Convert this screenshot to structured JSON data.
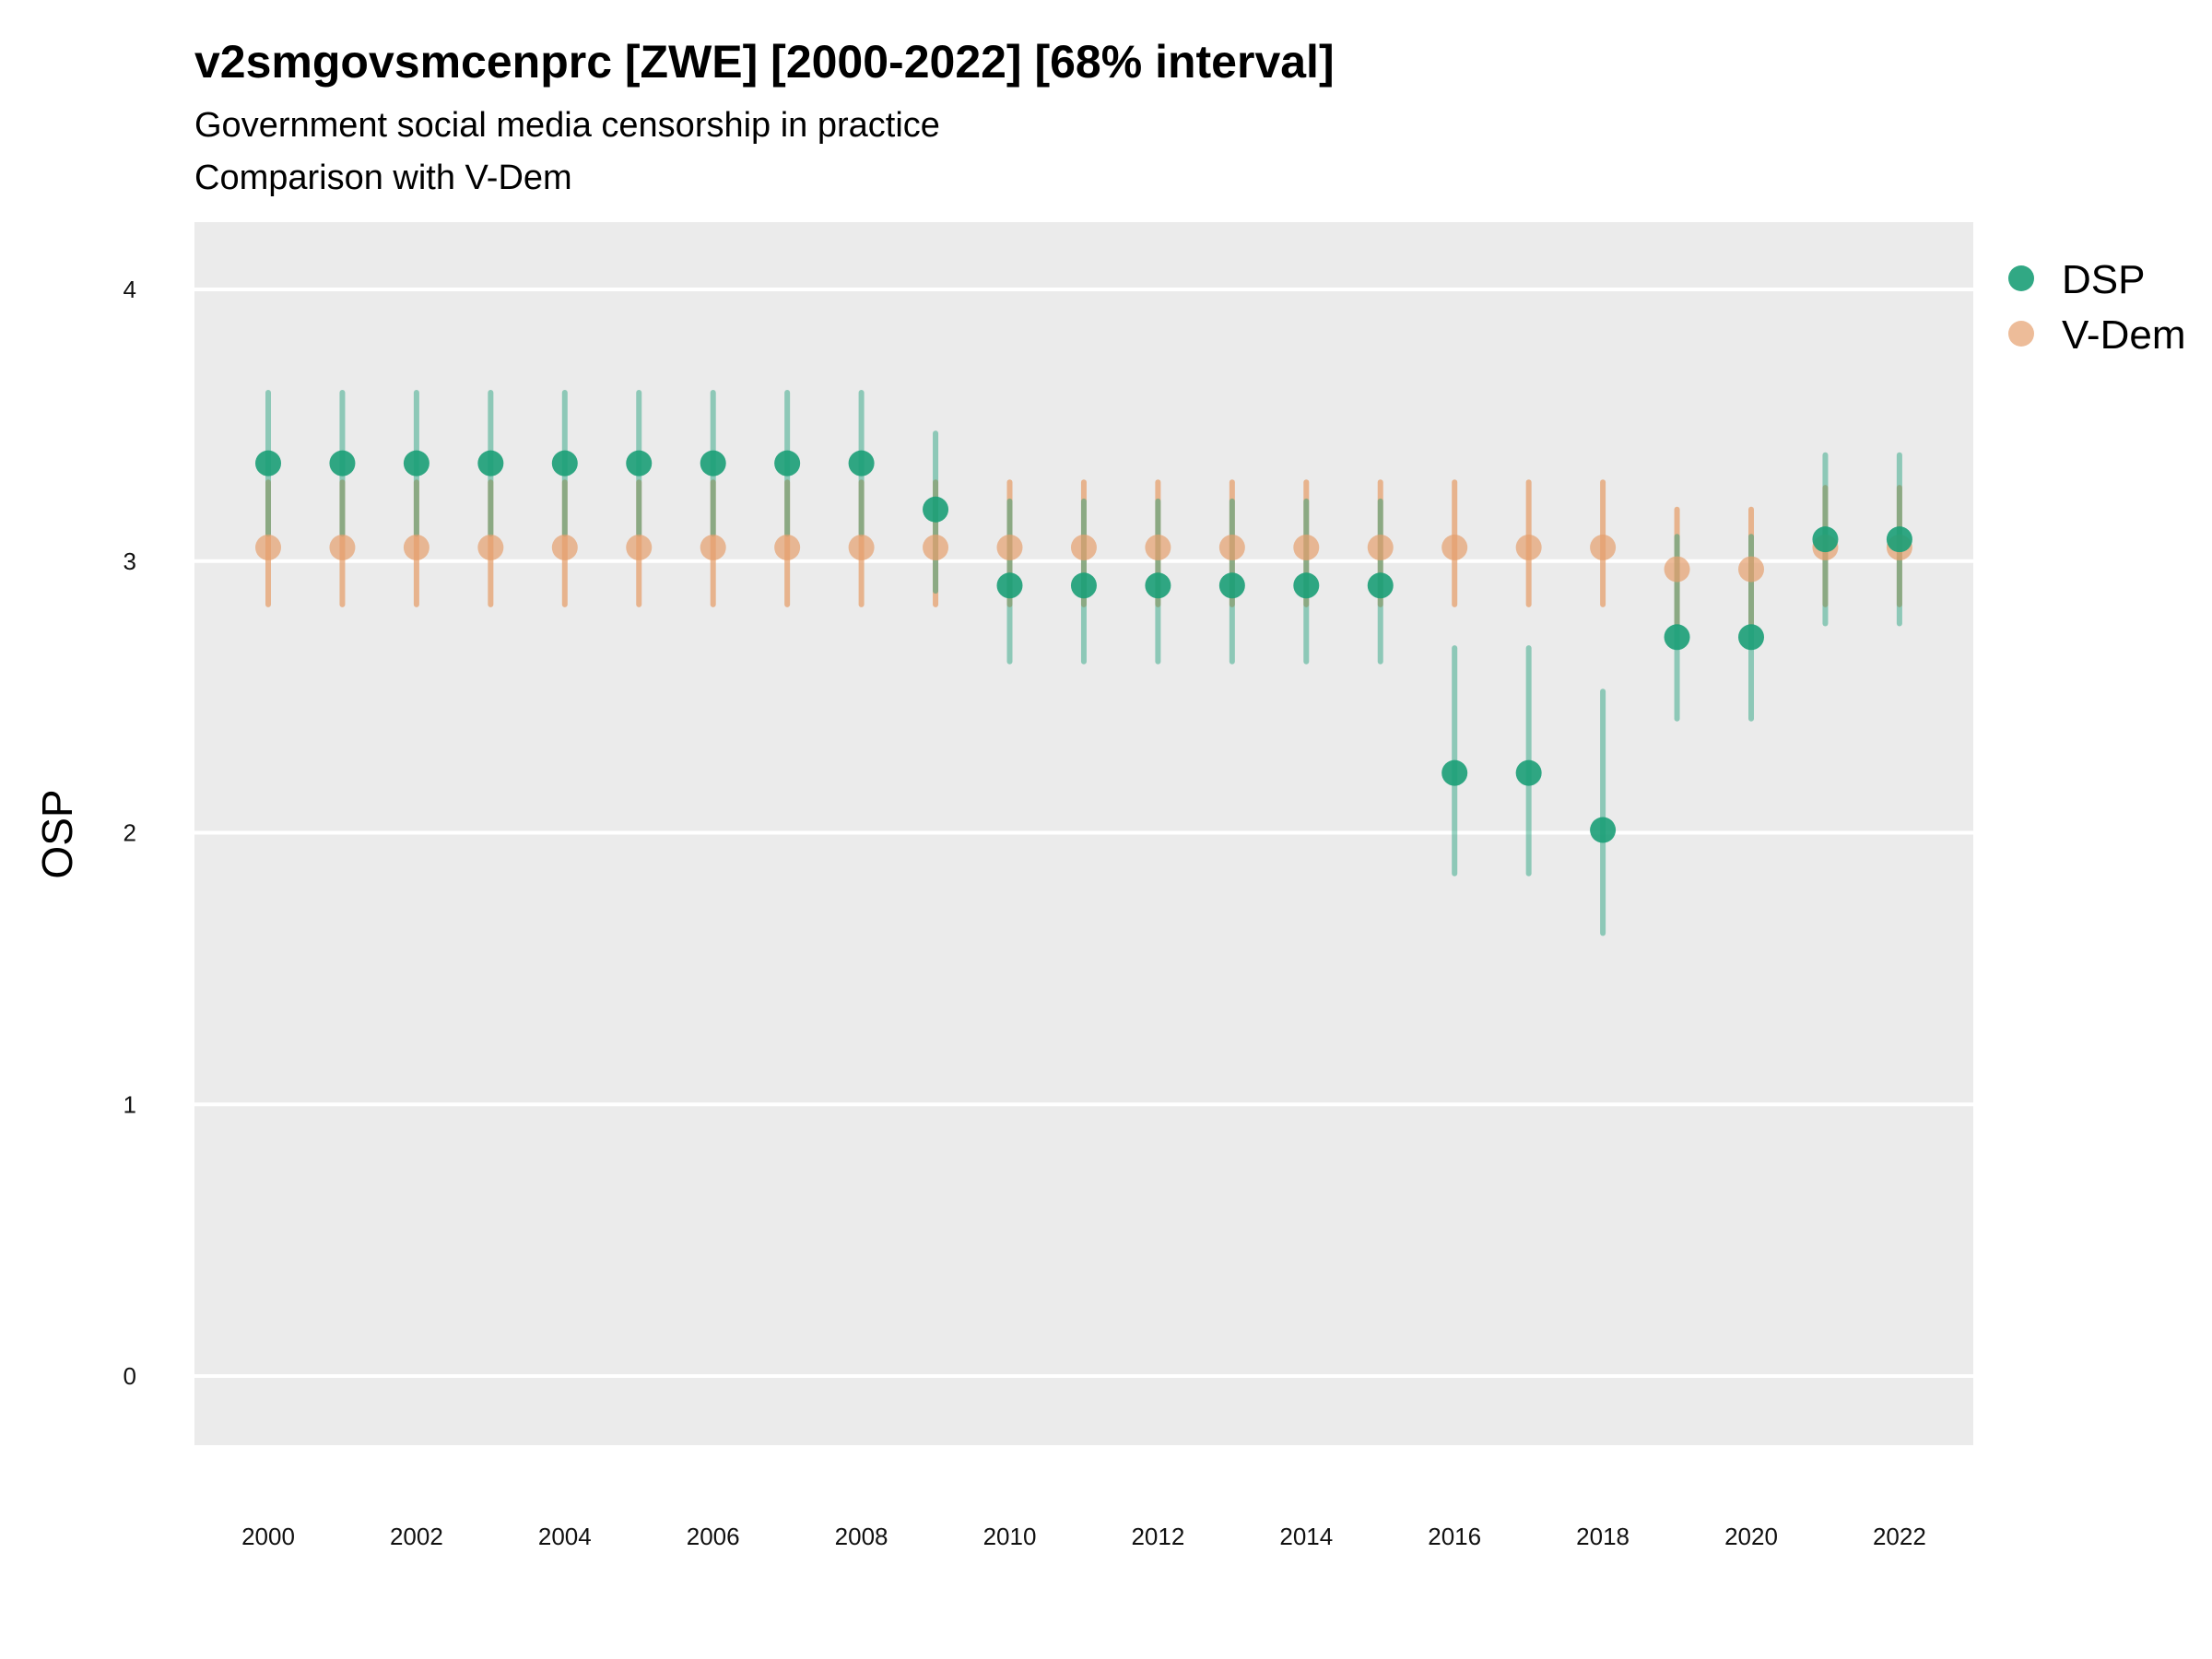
{
  "chart_data": {
    "type": "scatter",
    "title": "v2smgovsmcenprc [ZWE] [2000-2022] [68% interval]",
    "subtitle": [
      "Government social media censorship in practice",
      "Comparison with V-Dem"
    ],
    "xlabel": "",
    "ylabel": "OSP",
    "ylim": [
      -0.25,
      4.25
    ],
    "yticks": [
      0,
      1,
      2,
      3,
      4
    ],
    "xticks": [
      2000,
      2002,
      2004,
      2006,
      2008,
      2010,
      2012,
      2014,
      2016,
      2018,
      2020,
      2022
    ],
    "grid": true,
    "legend_position": "right",
    "x": [
      2000,
      2001,
      2002,
      2003,
      2004,
      2005,
      2006,
      2007,
      2008,
      2009,
      2010,
      2011,
      2012,
      2013,
      2014,
      2015,
      2016,
      2017,
      2018,
      2019,
      2020,
      2021,
      2022
    ],
    "series": [
      {
        "name": "V-Dem",
        "color": "#E6A06E",
        "values": [
          3.05,
          3.05,
          3.05,
          3.05,
          3.05,
          3.05,
          3.05,
          3.05,
          3.05,
          3.05,
          3.05,
          3.05,
          3.05,
          3.05,
          3.05,
          3.05,
          3.05,
          3.05,
          3.05,
          2.97,
          2.97,
          3.05,
          3.05
        ],
        "lower": [
          2.84,
          2.84,
          2.84,
          2.84,
          2.84,
          2.84,
          2.84,
          2.84,
          2.84,
          2.84,
          2.84,
          2.84,
          2.84,
          2.84,
          2.84,
          2.84,
          2.84,
          2.84,
          2.84,
          2.77,
          2.77,
          2.84,
          2.84
        ],
        "upper": [
          3.29,
          3.29,
          3.29,
          3.29,
          3.29,
          3.29,
          3.29,
          3.29,
          3.29,
          3.29,
          3.29,
          3.29,
          3.29,
          3.29,
          3.29,
          3.29,
          3.29,
          3.29,
          3.29,
          3.19,
          3.19,
          3.27,
          3.27
        ]
      },
      {
        "name": "DSP",
        "color": "#1B9E77",
        "values": [
          3.36,
          3.36,
          3.36,
          3.36,
          3.36,
          3.36,
          3.36,
          3.36,
          3.36,
          3.19,
          2.91,
          2.91,
          2.91,
          2.91,
          2.91,
          2.91,
          2.22,
          2.22,
          2.01,
          2.72,
          2.72,
          3.08,
          3.08
        ],
        "lower": [
          3.1,
          3.1,
          3.1,
          3.1,
          3.1,
          3.1,
          3.1,
          3.1,
          3.1,
          2.89,
          2.63,
          2.63,
          2.63,
          2.63,
          2.63,
          2.63,
          1.85,
          1.85,
          1.63,
          2.42,
          2.42,
          2.77,
          2.77
        ],
        "upper": [
          3.62,
          3.62,
          3.62,
          3.62,
          3.62,
          3.62,
          3.62,
          3.62,
          3.62,
          3.47,
          3.22,
          3.22,
          3.22,
          3.22,
          3.22,
          3.22,
          2.68,
          2.68,
          2.52,
          3.09,
          3.09,
          3.39,
          3.39
        ]
      }
    ],
    "legend": [
      "DSP",
      "V-Dem"
    ]
  }
}
